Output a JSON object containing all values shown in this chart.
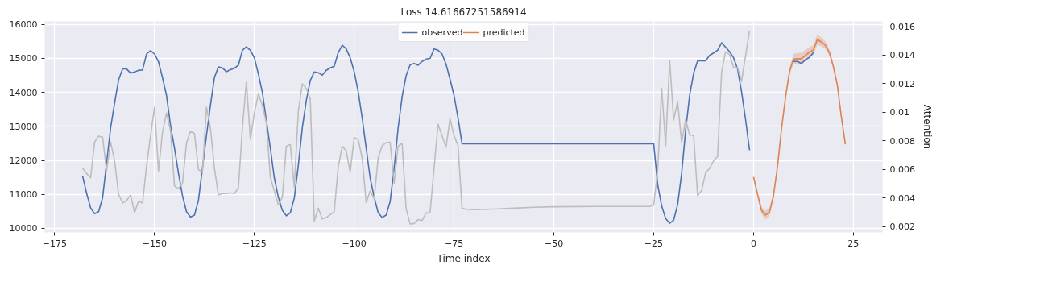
{
  "chart_data": {
    "type": "line",
    "title": "Loss 14.61667251586914",
    "xlabel": "Time index",
    "y2label": "Attention",
    "xlim": [
      -177.5,
      32.3
    ],
    "xticks": [
      -175,
      -150,
      -125,
      -100,
      -75,
      -50,
      -25,
      0,
      25
    ],
    "ylim": [
      9880,
      16090
    ],
    "yticks": [
      10000,
      11000,
      12000,
      13000,
      14000,
      15000,
      16000
    ],
    "y2lim": [
      0.00158,
      0.01637
    ],
    "y2ticks": [
      0.002,
      0.004,
      0.006,
      0.008,
      0.01,
      0.012,
      0.014,
      0.016
    ],
    "grid": true,
    "legend": "top",
    "series": [
      {
        "name": "observed",
        "color": "#4c72b0",
        "x": [
          -168,
          -167,
          -166,
          -165,
          -164,
          -163,
          -162,
          -161,
          -160,
          -159,
          -158,
          -157,
          -156,
          -155,
          -154,
          -153,
          -152,
          -151,
          -150,
          -149,
          -148,
          -147,
          -146,
          -145,
          -144,
          -143,
          -142,
          -141,
          -140,
          -139,
          -138,
          -137,
          -136,
          -135,
          -134,
          -133,
          -132,
          -131,
          -130,
          -129,
          -128,
          -127,
          -126,
          -125,
          -124,
          -123,
          -122,
          -121,
          -120,
          -119,
          -118,
          -117,
          -116,
          -115,
          -114,
          -113,
          -112,
          -111,
          -110,
          -109,
          -108,
          -107,
          -106,
          -105,
          -104,
          -103,
          -102,
          -101,
          -100,
          -99,
          -98,
          -97,
          -96,
          -95,
          -94,
          -93,
          -92,
          -91,
          -90,
          -89,
          -88,
          -87,
          -86,
          -85,
          -84,
          -83,
          -82,
          -81,
          -80,
          -79,
          -78,
          -77,
          -76,
          -75,
          -74,
          -73,
          -25,
          -24,
          -23,
          -22,
          -21,
          -20,
          -19,
          -18,
          -17,
          -16,
          -15,
          -14,
          -13,
          -12,
          -11,
          -10,
          -9,
          -8,
          -7,
          -6,
          -5,
          -4,
          -3,
          -2,
          -1
        ],
        "values": [
          11530,
          11030,
          10600,
          10430,
          10490,
          10900,
          11920,
          12950,
          13690,
          14370,
          14690,
          14690,
          14570,
          14600,
          14650,
          14660,
          15130,
          15230,
          15130,
          14900,
          14430,
          13910,
          13030,
          12360,
          11620,
          10960,
          10490,
          10330,
          10390,
          10830,
          11770,
          12730,
          13620,
          14440,
          14750,
          14720,
          14610,
          14670,
          14710,
          14800,
          15240,
          15340,
          15240,
          15020,
          14540,
          14000,
          13170,
          12360,
          11480,
          10920,
          10530,
          10370,
          10460,
          10890,
          11850,
          12950,
          13760,
          14350,
          14600,
          14580,
          14510,
          14650,
          14720,
          14770,
          15170,
          15390,
          15280,
          15020,
          14610,
          14020,
          13250,
          12360,
          11480,
          10920,
          10460,
          10320,
          10390,
          10790,
          11770,
          12950,
          13870,
          14490,
          14810,
          14850,
          14800,
          14910,
          14980,
          15000,
          15280,
          15240,
          15130,
          14830,
          14390,
          13910,
          13250,
          12490,
          12490,
          11290,
          10660,
          10290,
          10150,
          10240,
          10700,
          11620,
          12880,
          13910,
          14560,
          14930,
          14930,
          14930,
          15090,
          15160,
          15240,
          15460,
          15330,
          15200,
          15020,
          14690,
          14020,
          13210,
          12300
        ]
      },
      {
        "name": "predicted",
        "color": "#dd8452",
        "x": [
          0,
          1,
          2,
          3,
          4,
          5,
          6,
          7,
          8,
          9,
          10,
          11,
          12,
          13,
          14,
          15,
          16,
          17,
          18,
          19,
          20,
          21,
          22,
          23
        ],
        "values": [
          11510,
          11010,
          10530,
          10390,
          10480,
          10960,
          11810,
          12920,
          13840,
          14610,
          14980,
          14990,
          14990,
          15090,
          15180,
          15250,
          15560,
          15480,
          15390,
          15170,
          14760,
          14210,
          13280,
          12470
        ],
        "lower": [
          11450,
          10930,
          10420,
          10260,
          10360,
          10860,
          11720,
          12840,
          13760,
          14510,
          14830,
          14820,
          14820,
          14930,
          15030,
          15110,
          15410,
          15350,
          15280,
          15080,
          14680,
          14140,
          13220,
          12420
        ],
        "upper": [
          11570,
          11090,
          10640,
          10520,
          10600,
          11060,
          11900,
          13000,
          13920,
          14710,
          15130,
          15160,
          15160,
          15250,
          15330,
          15390,
          15710,
          15610,
          15500,
          15260,
          14840,
          14280,
          13340,
          12520
        ]
      },
      {
        "color": "#4c72b0",
        "x": [
          10,
          11,
          12,
          13,
          14,
          15
        ],
        "values": [
          14910,
          14910,
          14850,
          14960,
          15030,
          15170
        ]
      },
      {
        "color": "#bdbdbd",
        "axis": "y2",
        "x": [
          -168,
          -167,
          -166,
          -165,
          -164,
          -163,
          -162,
          -161,
          -160,
          -159,
          -158,
          -157,
          -156,
          -155,
          -154,
          -153,
          -152,
          -151,
          -150,
          -149,
          -148,
          -147,
          -146,
          -145,
          -144,
          -143,
          -142,
          -141,
          -140,
          -139,
          -138,
          -137,
          -136,
          -135,
          -134,
          -133,
          -132,
          -131,
          -130,
          -129,
          -128,
          -127,
          -126,
          -125,
          -124,
          -123,
          -122,
          -121,
          -120,
          -119,
          -118,
          -117,
          -116,
          -115,
          -114,
          -113,
          -112,
          -111,
          -110,
          -109,
          -108,
          -107,
          -106,
          -105,
          -104,
          -103,
          -102,
          -101,
          -100,
          -99,
          -98,
          -97,
          -96,
          -95,
          -94,
          -93,
          -92,
          -91,
          -90,
          -89,
          -88,
          -87,
          -86,
          -85,
          -84,
          -83,
          -82,
          -81,
          -80,
          -79,
          -78,
          -77,
          -76,
          -75,
          -74,
          -73,
          -72,
          -70,
          -65,
          -60,
          -55,
          -50,
          -40,
          -26,
          -25,
          -24,
          -23,
          -22,
          -21,
          -20,
          -19,
          -18,
          -17,
          -16,
          -15,
          -14,
          -13,
          -12,
          -11,
          -10,
          -9,
          -8,
          -7,
          -6,
          -5,
          -4,
          -3,
          -2,
          -1
        ],
        "values": [
          0.00607,
          0.00571,
          0.00541,
          0.00792,
          0.00833,
          0.00825,
          0.00589,
          0.00792,
          0.0066,
          0.00426,
          0.00364,
          0.0038,
          0.00421,
          0.00297,
          0.00377,
          0.00364,
          0.00624,
          0.00836,
          0.01036,
          0.00589,
          0.00863,
          0.00995,
          0.00872,
          0.00483,
          0.00465,
          0.00501,
          0.00783,
          0.00868,
          0.00851,
          0.00598,
          0.0058,
          0.01036,
          0.00889,
          0.00607,
          0.00421,
          0.0043,
          0.0043,
          0.00436,
          0.0043,
          0.0047,
          0.00889,
          0.01213,
          0.0081,
          0.00995,
          0.01128,
          0.01048,
          0.00925,
          0.00545,
          0.00448,
          0.00351,
          0.00404,
          0.00762,
          0.00774,
          0.00474,
          0.01004,
          0.01199,
          0.01167,
          0.01093,
          0.00235,
          0.00329,
          0.00253,
          0.00262,
          0.00283,
          0.00303,
          0.00616,
          0.00762,
          0.0073,
          0.0058,
          0.00823,
          0.0081,
          0.00677,
          0.00368,
          0.00448,
          0.00395,
          0.0068,
          0.00765,
          0.00787,
          0.0079,
          0.00501,
          0.00762,
          0.00783,
          0.00324,
          0.00218,
          0.00221,
          0.00248,
          0.00241,
          0.00294,
          0.00297,
          0.00607,
          0.00916,
          0.00836,
          0.00756,
          0.00955,
          0.00836,
          0.00766,
          0.00329,
          0.0032,
          0.00318,
          0.00322,
          0.00328,
          0.00334,
          0.00338,
          0.0034,
          0.0034,
          0.0035,
          0.00589,
          0.01169,
          0.00766,
          0.01363,
          0.00946,
          0.01075,
          0.00787,
          0.0095,
          0.00842,
          0.00836,
          0.00416,
          0.00451,
          0.00575,
          0.00607,
          0.0066,
          0.0069,
          0.01279,
          0.01423,
          0.01405,
          0.01314,
          0.01314,
          0.01217,
          0.01393,
          0.01573
        ]
      }
    ]
  }
}
